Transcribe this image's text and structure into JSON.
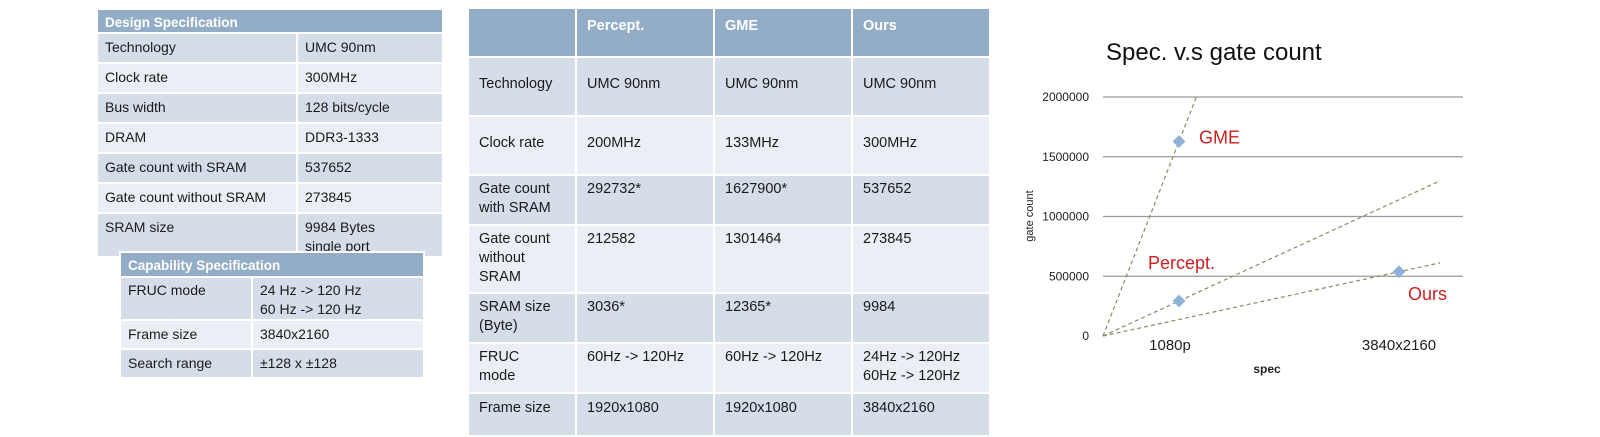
{
  "design_spec": {
    "header": "Design Specification",
    "rows": [
      {
        "label": "Technology",
        "value": "UMC 90nm"
      },
      {
        "label": "Clock rate",
        "value": "300MHz"
      },
      {
        "label": "Bus width",
        "value": "128 bits/cycle"
      },
      {
        "label": "DRAM",
        "value": "DDR3-1333"
      },
      {
        "label": "Gate count with SRAM",
        "value": "537652"
      },
      {
        "label": "Gate count without SRAM",
        "value": "273845"
      },
      {
        "label": "SRAM size",
        "value": "9984 Bytes\nsingle port"
      }
    ]
  },
  "capability_spec": {
    "header": "Capability Specification",
    "rows": [
      {
        "label": "FRUC mode",
        "value": "24 Hz -> 120 Hz\n60 Hz -> 120 Hz"
      },
      {
        "label": "Frame size",
        "value": "3840x2160"
      },
      {
        "label": "Search range",
        "value": "±128 x ±128"
      }
    ]
  },
  "comparison": {
    "columns": [
      "",
      "Percept.",
      "GME",
      "Ours"
    ],
    "rows": [
      {
        "label": "Technology",
        "values": [
          "UMC 90nm",
          "UMC 90nm",
          "UMC 90nm"
        ]
      },
      {
        "label": "Clock rate",
        "values": [
          "200MHz",
          "133MHz",
          "300MHz"
        ]
      },
      {
        "label": "Gate count\nwith SRAM",
        "values": [
          "292732*",
          "1627900*",
          "537652"
        ]
      },
      {
        "label": "Gate count\nwithout\nSRAM",
        "values": [
          "212582",
          "1301464",
          "273845"
        ]
      },
      {
        "label": "SRAM size\n(Byte)",
        "values": [
          "3036*",
          "12365*",
          "9984"
        ]
      },
      {
        "label": "FRUC\nmode",
        "values": [
          "60Hz -> 120Hz",
          "60Hz -> 120Hz",
          "24Hz -> 120Hz\n60Hz -> 120Hz"
        ]
      },
      {
        "label": "Frame size",
        "values": [
          "1920x1080",
          "1920x1080",
          "3840x2160"
        ]
      }
    ]
  },
  "chart_data": {
    "type": "scatter",
    "title": "Spec. v.s gate count",
    "xlabel": "spec",
    "ylabel": "gate count",
    "categories": [
      "1080p",
      "3840x2160"
    ],
    "yticks": [
      "0",
      "500000",
      "1000000",
      "1500000",
      "2000000"
    ],
    "ylim": [
      0,
      2000000
    ],
    "grid": true,
    "points": [
      {
        "label": "GME",
        "x": "1080p",
        "y": 1627900
      },
      {
        "label": "Percept.",
        "x": "1080p",
        "y": 292732
      },
      {
        "label": "Ours",
        "x": "3840x2160",
        "y": 537652
      }
    ],
    "colors": {
      "point": "#8fb0d8",
      "label": "#cc1f1f",
      "trend": "#8a8a6a",
      "grid": "#9a9a9a"
    }
  }
}
